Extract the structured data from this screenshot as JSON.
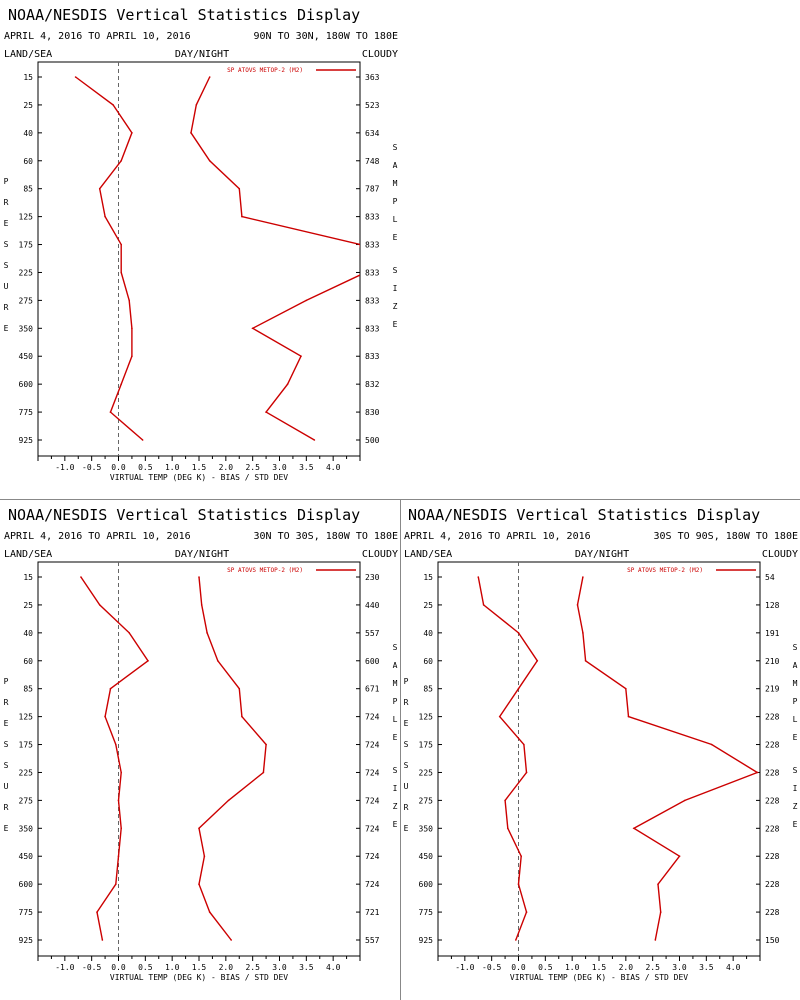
{
  "colors": {
    "series": "#cc0000",
    "frame": "#000000",
    "zero_line": "#666666"
  },
  "chart_data": [
    {
      "type": "line",
      "title": "NOAA/NESDIS Vertical Statistics Display",
      "date_range": "APRIL 4, 2016 TO APRIL 10, 2016",
      "region": "90N TO 30N, 180W TO 180E",
      "top_labels": {
        "left": "LAND/SEA",
        "center": "DAY/NIGHT",
        "right": "CLOUDY"
      },
      "xlabel": "VIRTUAL TEMP (DEG K) - BIAS / STD DEV",
      "ylabel": "PRESSURE",
      "y2label": "SAMPLE SIZE",
      "legend": "SP ATOVS METOP-2 (M2)",
      "xlim": [
        -1.5,
        4.5
      ],
      "xticks": [
        "-1.0",
        "-0.5",
        "0.0",
        "0.5",
        "1.0",
        "1.5",
        "2.0",
        "2.5",
        "3.0",
        "3.5",
        "4.0"
      ],
      "pressure_levels": [
        "15",
        "25",
        "40",
        "60",
        "85",
        "125",
        "175",
        "225",
        "275",
        "350",
        "450",
        "600",
        "775",
        "925"
      ],
      "sample_size": [
        "363",
        "523",
        "634",
        "748",
        "787",
        "833",
        "833",
        "833",
        "833",
        "833",
        "833",
        "832",
        "830",
        "500"
      ],
      "series": [
        {
          "name": "bias",
          "values": [
            -0.8,
            -0.1,
            0.25,
            0.05,
            -0.35,
            -0.25,
            0.05,
            0.05,
            0.2,
            0.25,
            0.25,
            0.05,
            -0.15,
            0.45
          ]
        },
        {
          "name": "std dev",
          "values": [
            1.7,
            1.45,
            1.35,
            1.7,
            2.25,
            2.3,
            4.5,
            4.6,
            3.5,
            2.5,
            3.4,
            3.15,
            2.75,
            3.65
          ]
        }
      ]
    },
    {
      "type": "line",
      "title": "NOAA/NESDIS Vertical Statistics Display",
      "date_range": "APRIL 4, 2016 TO APRIL 10, 2016",
      "region": "30N TO 30S, 180W TO 180E",
      "top_labels": {
        "left": "LAND/SEA",
        "center": "DAY/NIGHT",
        "right": "CLOUDY"
      },
      "xlabel": "VIRTUAL TEMP (DEG K) - BIAS / STD DEV",
      "ylabel": "PRESSURE",
      "y2label": "SAMPLE SIZE",
      "legend": "SP ATOVS METOP-2 (M2)",
      "xlim": [
        -1.5,
        4.5
      ],
      "xticks": [
        "-1.0",
        "-0.5",
        "0.0",
        "0.5",
        "1.0",
        "1.5",
        "2.0",
        "2.5",
        "3.0",
        "3.5",
        "4.0"
      ],
      "pressure_levels": [
        "15",
        "25",
        "40",
        "60",
        "85",
        "125",
        "175",
        "225",
        "275",
        "350",
        "450",
        "600",
        "775",
        "925"
      ],
      "sample_size": [
        "230",
        "440",
        "557",
        "600",
        "671",
        "724",
        "724",
        "724",
        "724",
        "724",
        "724",
        "724",
        "721",
        "557"
      ],
      "series": [
        {
          "name": "bias",
          "values": [
            -0.7,
            -0.35,
            0.2,
            0.55,
            -0.15,
            -0.25,
            -0.05,
            0.05,
            0.0,
            0.05,
            0.0,
            -0.05,
            -0.4,
            -0.3
          ]
        },
        {
          "name": "std dev",
          "values": [
            1.5,
            1.55,
            1.65,
            1.85,
            2.25,
            2.3,
            2.75,
            2.7,
            2.05,
            1.5,
            1.6,
            1.5,
            1.7,
            2.1
          ]
        }
      ]
    },
    {
      "type": "line",
      "title": "NOAA/NESDIS Vertical Statistics Display",
      "date_range": "APRIL 4, 2016 TO APRIL 10, 2016",
      "region": "30S TO 90S, 180W TO 180E",
      "top_labels": {
        "left": "LAND/SEA",
        "center": "DAY/NIGHT",
        "right": "CLOUDY"
      },
      "xlabel": "VIRTUAL TEMP (DEG K) - BIAS / STD DEV",
      "ylabel": "PRESSURE",
      "y2label": "SAMPLE SIZE",
      "legend": "SP ATOVS METOP-2 (M2)",
      "xlim": [
        -1.5,
        4.5
      ],
      "xticks": [
        "-1.0",
        "-0.5",
        "0.0",
        "0.5",
        "1.0",
        "1.5",
        "2.0",
        "2.5",
        "3.0",
        "3.5",
        "4.0"
      ],
      "pressure_levels": [
        "15",
        "25",
        "40",
        "60",
        "85",
        "125",
        "175",
        "225",
        "275",
        "350",
        "450",
        "600",
        "775",
        "925"
      ],
      "sample_size": [
        "54",
        "128",
        "191",
        "210",
        "219",
        "228",
        "228",
        "228",
        "228",
        "228",
        "228",
        "228",
        "228",
        "150"
      ],
      "series": [
        {
          "name": "bias",
          "values": [
            -0.75,
            -0.65,
            0.0,
            0.35,
            0.0,
            -0.35,
            0.1,
            0.15,
            -0.25,
            -0.2,
            0.05,
            0.0,
            0.15,
            -0.05
          ]
        },
        {
          "name": "std dev",
          "values": [
            1.2,
            1.1,
            1.2,
            1.25,
            2.0,
            2.05,
            3.6,
            4.45,
            3.1,
            2.15,
            3.0,
            2.6,
            2.65,
            2.55
          ]
        }
      ]
    }
  ]
}
